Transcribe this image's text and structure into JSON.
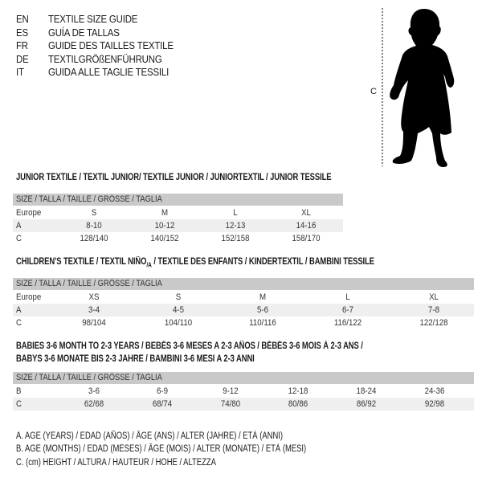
{
  "languages": [
    {
      "code": "EN",
      "title": "TEXTILE SIZE GUIDE"
    },
    {
      "code": "ES",
      "title": "GUÍA DE TALLAS"
    },
    {
      "code": "FR",
      "title": "GUIDE DES TAILLES TEXTILE"
    },
    {
      "code": "DE",
      "title": "TEXTILGRÖßENFÜHRUNG"
    },
    {
      "code": "IT",
      "title": "GUIDA ALLE TAGLIE TESSILI"
    }
  ],
  "figure": {
    "measure_label": "C"
  },
  "header_label": "SIZE / TALLA / TAILLE / GRÖSSE / TAGLIA",
  "junior": {
    "title": "JUNIOR TEXTILE / TEXTIL JUNIOR/ TEXTILE JUNIOR / JUNIORTEXTIL / JUNIOR TESSILE",
    "rows": [
      {
        "label": "Europe",
        "values": [
          "S",
          "M",
          "L",
          "XL"
        ]
      },
      {
        "label": "A",
        "values": [
          "8-10",
          "10-12",
          "12-13",
          "14-16"
        ]
      },
      {
        "label": "C",
        "values": [
          "128/140",
          "140/152",
          "152/158",
          "158/170"
        ]
      }
    ]
  },
  "children": {
    "title_a": "CHILDREN'S TEXTILE / TEXTIL NIÑO",
    "title_sub": "/A",
    "title_b": " / TEXTILE DES ENFANTS / KINDERTEXTIL / BAMBINI TESSILE",
    "rows": [
      {
        "label": "Europe",
        "values": [
          "XS",
          "S",
          "M",
          "L",
          "XL"
        ]
      },
      {
        "label": "A",
        "values": [
          "3-4",
          "4-5",
          "5-6",
          "6-7",
          "7-8"
        ]
      },
      {
        "label": "C",
        "values": [
          "98/104",
          "104/110",
          "110/116",
          "116/122",
          "122/128"
        ]
      }
    ]
  },
  "babies": {
    "title_line1": "BABIES 3-6 MONTH TO 2-3 YEARS / BEBÉS 3-6 MESES A 2-3 AÑOS / BÉBÉS 3-6 MOIS À 2-3 ANS /",
    "title_line2": "BABYS 3-6 MONATE BIS 2-3 JAHRE / BAMBINI 3-6 MESI A 2-3 ANNI",
    "rows": [
      {
        "label": "B",
        "values": [
          "3-6",
          "6-9",
          "9-12",
          "12-18",
          "18-24",
          "24-36"
        ]
      },
      {
        "label": "C",
        "values": [
          "62/68",
          "68/74",
          "74/80",
          "80/86",
          "86/92",
          "92/98"
        ]
      }
    ]
  },
  "legend": [
    "A. AGE (YEARS) / EDAD (AÑOS) / ÂGE (ANS) / ALTER (JAHRE) / ETÀ (ANNI)",
    "B. AGE (MONTHS) / EDAD (MESES) / ÂGE (MOIS) / ALTER (MONATE) / ETÀ (MESI)",
    "C. (cm) HEIGHT / ALTURA / HAUTEUR / HÖHE / ALTEZZA"
  ]
}
